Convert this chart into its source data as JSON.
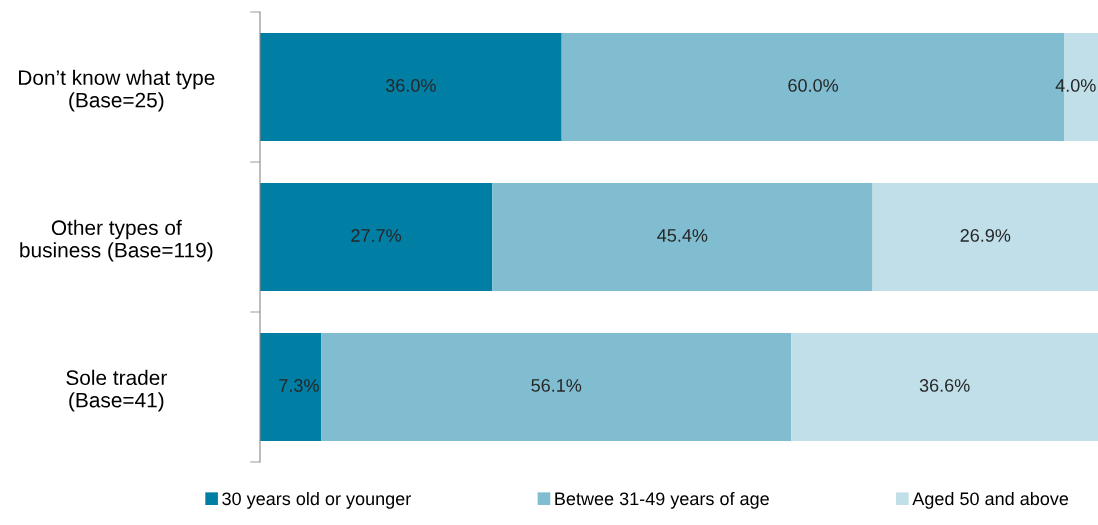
{
  "chart_data": {
    "type": "bar",
    "orientation": "horizontal",
    "stacked": true,
    "legend": "bottom",
    "grid": false,
    "categories": [
      "Don’t know what type\n(Base=25)",
      "Other types of\nbusiness (Base=119)",
      "Sole trader\n(Base=41)"
    ],
    "series": [
      {
        "name": "30 years old or younger",
        "color": "#007ea4",
        "values": [
          36.0,
          27.7,
          7.3
        ],
        "value_labels": [
          "36.0%",
          "27.7%",
          "7.3%"
        ]
      },
      {
        "name": "Betwee 31-49 years of age",
        "color": "#80bdd1",
        "values": [
          60.0,
          45.4,
          56.1
        ],
        "value_labels": [
          "60.0%",
          "45.4%",
          "56.1%"
        ]
      },
      {
        "name": "Aged 50 and above",
        "color": "#c0dfe8",
        "values": [
          4.0,
          26.9,
          36.6
        ],
        "value_labels": [
          "4.0%",
          "26.9%",
          "36.6%"
        ]
      }
    ]
  }
}
